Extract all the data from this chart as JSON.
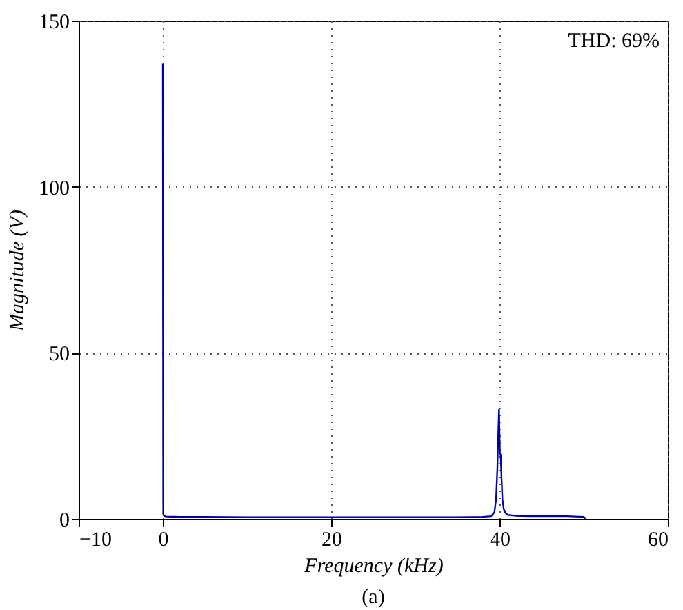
{
  "chart_data": {
    "type": "line",
    "xlabel": "Frequency (kHz)",
    "ylabel": "Magnitude (V)",
    "annotations": [
      "THD: 69%",
      "(a)"
    ],
    "x": [
      0,
      0.05,
      0.15,
      0.4,
      2,
      5,
      10,
      15,
      20,
      25,
      30,
      35,
      38,
      39,
      39.4,
      39.6,
      39.75,
      39.85,
      39.95,
      40.05,
      40.15,
      40.25,
      40.35,
      40.5,
      40.7,
      41,
      42,
      44,
      46,
      48,
      50,
      50.3
    ],
    "series": [
      {
        "color": "#0000a8",
        "values": [
          137,
          1.5,
          0.9,
          0.7,
          0.6,
          0.6,
          0.5,
          0.5,
          0.5,
          0.5,
          0.5,
          0.5,
          0.6,
          0.8,
          2,
          6,
          15,
          25,
          33,
          20,
          19,
          12,
          6,
          3,
          1.8,
          1.2,
          0.9,
          0.8,
          0.8,
          0.8,
          0.6,
          0
        ]
      }
    ],
    "xlim": [
      -10,
      60
    ],
    "xticks": [
      -10,
      0,
      20,
      40,
      60
    ],
    "ylim": [
      0,
      150
    ],
    "yticks": [
      0,
      50,
      100,
      150
    ],
    "grid": true
  }
}
